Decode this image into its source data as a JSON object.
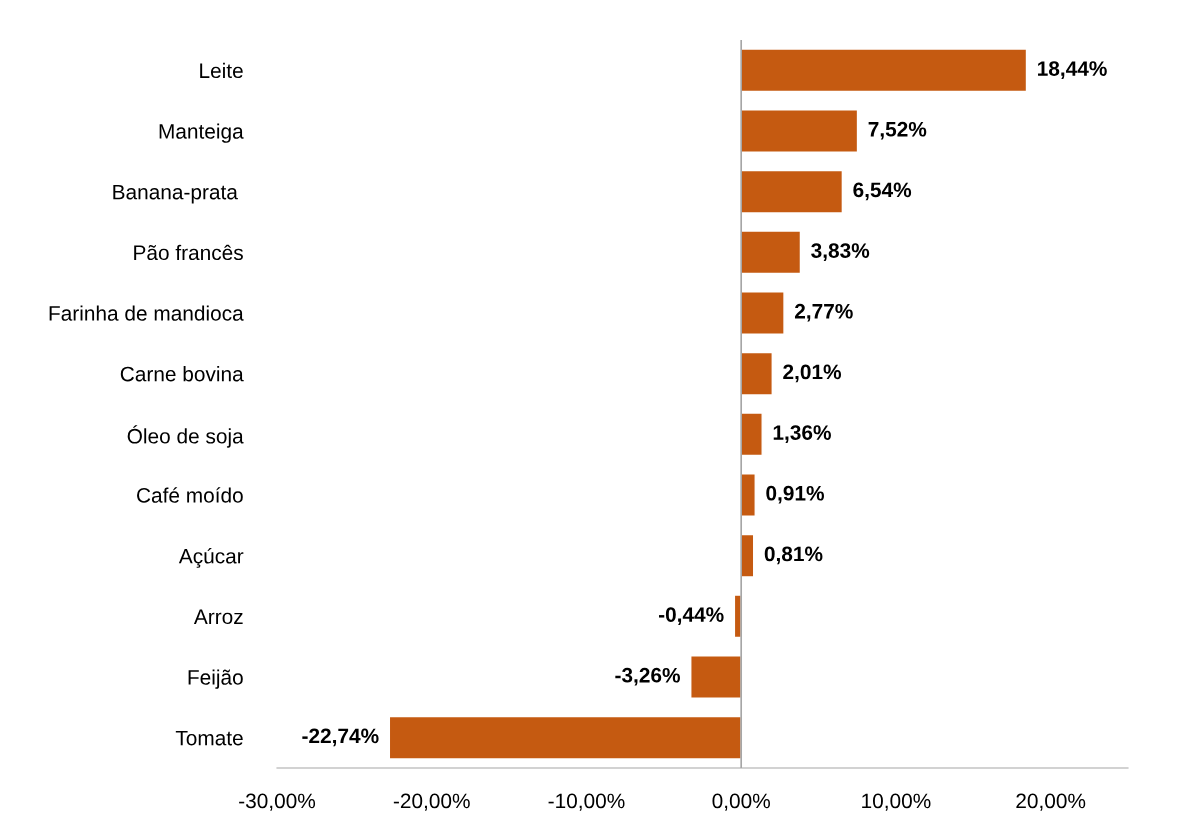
{
  "chart_data": {
    "type": "bar",
    "orientation": "horizontal",
    "categories": [
      "Leite",
      "Manteiga",
      "Banana-prata ",
      "Pão francês",
      "Farinha de mandioca",
      "Carne bovina",
      "Óleo de soja",
      "Café moído",
      "Açúcar",
      "Arroz",
      "Feijão",
      "Tomate"
    ],
    "values": [
      18.44,
      7.52,
      6.54,
      3.83,
      2.77,
      2.01,
      1.36,
      0.91,
      0.81,
      -0.44,
      -3.26,
      -22.74
    ],
    "value_labels": [
      "18,44%",
      "7,52%",
      "6,54%",
      "3,83%",
      "2,77%",
      "2,01%",
      "1,36%",
      "0,91%",
      "0,81%",
      "-0,44%",
      "-3,26%",
      "-22,74%"
    ],
    "color": "#c55a11",
    "xlim": [
      -30,
      25
    ],
    "xticks": [
      {
        "value": -30,
        "label": "-30,00%"
      },
      {
        "value": -20,
        "label": "-20,00%"
      },
      {
        "value": -10,
        "label": "-10,00%"
      },
      {
        "value": 0,
        "label": "0,00%"
      },
      {
        "value": 10,
        "label": "10,00%"
      },
      {
        "value": 20,
        "label": "20,00%"
      }
    ],
    "ref_lines": [
      {
        "axis": "x",
        "value": 0,
        "color": "#a6a6a6"
      }
    ]
  }
}
